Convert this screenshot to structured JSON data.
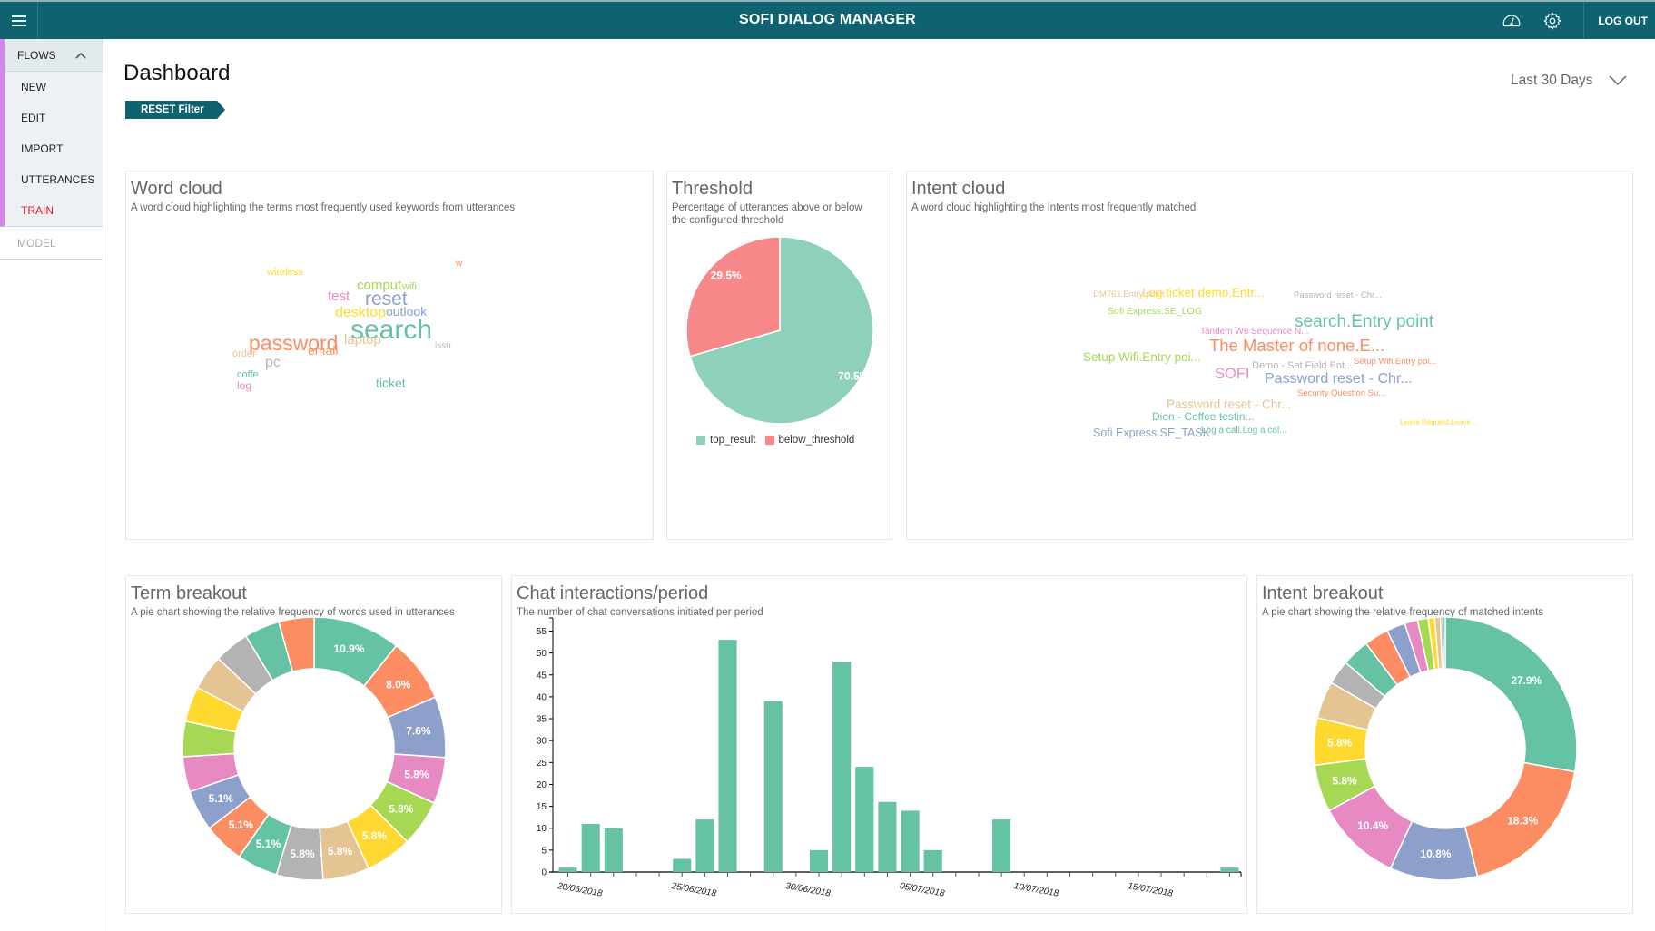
{
  "app": {
    "title": "SOFI DIALOG MANAGER",
    "logout_label": "LOG OUT",
    "icons": [
      "menu-icon",
      "speedometer-icon",
      "gear-icon"
    ]
  },
  "sidebar": {
    "group_label": "FLOWS",
    "items": [
      {
        "label": "NEW",
        "active": false
      },
      {
        "label": "EDIT",
        "active": false
      },
      {
        "label": "IMPORT",
        "active": false
      },
      {
        "label": "UTTERANCES",
        "active": false
      },
      {
        "label": "TRAIN",
        "active": true
      }
    ],
    "model_label": "MODEL",
    "accent_color": "#d785ec",
    "active_color": "#e0192c"
  },
  "header": {
    "title": "Dashboard",
    "reset_label": "RESET Filter",
    "range_label": "Last 30 Days"
  },
  "colors": {
    "brand": "#0f6370",
    "palette": [
      "#66c2a5",
      "#fc8d62",
      "#8da0cb",
      "#e78ac3",
      "#a6d854",
      "#ffd92f",
      "#e5c494",
      "#b3b3b3"
    ]
  },
  "word_cloud": {
    "title": "Word cloud",
    "subtitle": "A word cloud highlighting the terms most frequently used keywords from utterances",
    "words": [
      {
        "text": "search",
        "color": "#66c2a5",
        "weight": 10
      },
      {
        "text": "password",
        "color": "#fc8d62",
        "weight": 8
      },
      {
        "text": "reset",
        "color": "#8da0cb",
        "weight": 7
      },
      {
        "text": "test",
        "color": "#e78ac3",
        "weight": 5
      },
      {
        "text": "comput",
        "color": "#a6d854",
        "weight": 5
      },
      {
        "text": "desktop",
        "color": "#ffd92f",
        "weight": 5
      },
      {
        "text": "laptop",
        "color": "#e5c494",
        "weight": 5
      },
      {
        "text": "pc",
        "color": "#b3b3b3",
        "weight": 5
      },
      {
        "text": "outlook",
        "color": "#8da0cb",
        "weight": 5
      },
      {
        "text": "email",
        "color": "#fc8d62",
        "weight": 4
      },
      {
        "text": "ticket",
        "color": "#66c2a5",
        "weight": 4
      },
      {
        "text": "wifi",
        "color": "#a6d854",
        "weight": 3
      },
      {
        "text": "log",
        "color": "#e78ac3",
        "weight": 3
      },
      {
        "text": "coffe",
        "color": "#66c2a5",
        "weight": 3
      },
      {
        "text": "wireless",
        "color": "#ffd92f",
        "weight": 3
      },
      {
        "text": "order",
        "color": "#e5c494",
        "weight": 3
      },
      {
        "text": "issu",
        "color": "#b3b3b3",
        "weight": 3
      },
      {
        "text": "w",
        "color": "#fc8d62",
        "weight": 3
      }
    ]
  },
  "threshold": {
    "title": "Threshold",
    "subtitle_1": "Percentage of utterances above or below",
    "subtitle_2": "the configured threshold"
  },
  "intent_cloud": {
    "title": "Intent cloud",
    "subtitle": "A word cloud highlighting the Intents most frequently matched",
    "words": [
      {
        "text": "DM761.Entry point",
        "color": "#e5c494"
      },
      {
        "text": "Log ticket demo.Entr...",
        "color": "#ffd92f"
      },
      {
        "text": "Password reset - Chr...",
        "color": "#b3b3b3"
      },
      {
        "text": "Sofi Express.SE_LOG",
        "color": "#a6d854"
      },
      {
        "text": "search.Entry point",
        "color": "#66c2a5"
      },
      {
        "text": "Tandem W6 Sequence N...",
        "color": "#e78ac3"
      },
      {
        "text": "The Master of none.E...",
        "color": "#fc8d62"
      },
      {
        "text": "Setup Wifi.Entry poi...",
        "color": "#a6d854"
      },
      {
        "text": "Demo - Set Field.Ent...",
        "color": "#b3b3b3"
      },
      {
        "text": "Setup Wifi.Entry poi...",
        "color": "#fc8d62"
      },
      {
        "text": "SOFI",
        "color": "#e78ac3"
      },
      {
        "text": "Password reset - Chr...",
        "color": "#8da0cb"
      },
      {
        "text": "Security Question Su...",
        "color": "#fc8d62"
      },
      {
        "text": "Password reset - Chr...",
        "color": "#e5c494"
      },
      {
        "text": "Dion - Coffee testin...",
        "color": "#66c2a5"
      },
      {
        "text": "Leave Request.Leave ...",
        "color": "#ffd92f"
      },
      {
        "text": "Sofi Express.SE_TASK",
        "color": "#8da0cb"
      },
      {
        "text": "Log a call.Log a cal...",
        "color": "#66c2a5"
      }
    ]
  },
  "term_breakout": {
    "title": "Term breakout",
    "subtitle": "A pie chart showing the relative frequency of words used in utterances"
  },
  "chat_interactions": {
    "title": "Chat interactions/period",
    "subtitle": "The number of chat conversations initiated per period"
  },
  "intent_breakout": {
    "title": "Intent breakout",
    "subtitle": "A pie chart showing the relative frequency of matched intents"
  },
  "chart_data": [
    {
      "id": "threshold",
      "type": "pie",
      "title": "Threshold",
      "categories": [
        "top_result",
        "below_threshold"
      ],
      "values": [
        70.5,
        29.5
      ],
      "labels": [
        "70.5%",
        "29.5%"
      ],
      "colors": [
        "#8fd0bb",
        "#f7888a"
      ],
      "legend": "bottom"
    },
    {
      "id": "term_breakout",
      "type": "pie",
      "donut": true,
      "title": "Term breakout",
      "values": [
        10.9,
        8.0,
        7.6,
        5.8,
        5.8,
        5.8,
        5.8,
        5.8,
        5.1,
        5.1,
        5.1,
        4.4,
        4.4,
        4.4,
        4.4,
        4.4,
        4.4,
        4.4
      ],
      "labels": [
        "10.9%",
        "8.0%",
        "7.6%",
        "5.8%",
        "5.8%",
        "5.8%",
        "5.8%",
        "5.8%",
        "5.1%",
        "5.1%",
        "5.1%",
        "",
        "",
        "",
        "",
        "",
        "",
        ""
      ]
    },
    {
      "id": "chat_interactions",
      "type": "bar",
      "title": "Chat interactions/period",
      "categories": [
        "20/06/2018",
        "21/06/2018",
        "22/06/2018",
        "23/06/2018",
        "24/06/2018",
        "25/06/2018",
        "26/06/2018",
        "27/06/2018",
        "28/06/2018",
        "29/06/2018",
        "30/06/2018",
        "01/07/2018",
        "02/07/2018",
        "03/07/2018",
        "04/07/2018",
        "05/07/2018",
        "06/07/2018",
        "07/07/2018",
        "08/07/2018",
        "09/07/2018",
        "10/07/2018",
        "11/07/2018",
        "12/07/2018",
        "13/07/2018",
        "14/07/2018",
        "15/07/2018",
        "16/07/2018",
        "17/07/2018",
        "18/07/2018",
        "19/07/2018"
      ],
      "values": [
        1,
        11,
        10,
        0,
        0,
        3,
        12,
        53,
        0,
        39,
        0,
        5,
        48,
        24,
        16,
        14,
        5,
        0,
        0,
        12,
        0,
        0,
        0,
        0,
        0,
        0,
        0,
        0,
        0,
        1
      ],
      "xtick_labels": [
        "20/06/2018",
        "25/06/2018",
        "30/06/2018",
        "05/07/2018",
        "10/07/2018",
        "15/07/2018"
      ],
      "yticks": [
        0,
        5,
        10,
        15,
        20,
        25,
        30,
        35,
        40,
        45,
        50,
        55
      ],
      "ylim": [
        0,
        58
      ],
      "color": "#66c2a5",
      "xlabel": "",
      "ylabel": ""
    },
    {
      "id": "intent_breakout",
      "type": "pie",
      "donut": true,
      "title": "Intent breakout",
      "values": [
        27.9,
        18.3,
        10.8,
        10.4,
        5.8,
        5.8,
        4.6,
        3.0,
        3.4,
        3.0,
        2.3,
        1.6,
        1.3,
        0.8,
        0.7,
        0.3,
        0.3
      ],
      "labels": [
        "27.9%",
        "18.3%",
        "10.8%",
        "10.4%",
        "5.8%",
        "5.8%",
        "",
        "",
        "",
        "",
        "",
        "",
        "",
        "",
        "",
        "",
        ""
      ]
    }
  ]
}
